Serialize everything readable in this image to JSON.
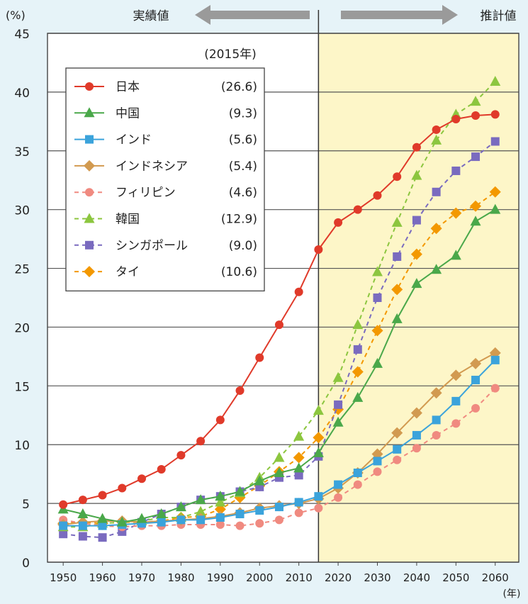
{
  "chart_data": {
    "type": "line",
    "y_unit_label": "(%)",
    "x_unit_label": "(年)",
    "region_labels": {
      "actual": "実績値",
      "projected": "推計値"
    },
    "legend_year_label": "(2015年)",
    "x": [
      1950,
      1955,
      1960,
      1965,
      1970,
      1975,
      1980,
      1985,
      1990,
      1995,
      2000,
      2005,
      2010,
      2015,
      2020,
      2025,
      2030,
      2035,
      2040,
      2045,
      2050,
      2055,
      2060
    ],
    "x_ticks": [
      1950,
      1960,
      1970,
      1980,
      1990,
      2000,
      2010,
      2020,
      2030,
      2040,
      2050,
      2060
    ],
    "ylim": [
      0,
      45
    ],
    "y_ticks": [
      0,
      5,
      10,
      15,
      20,
      25,
      30,
      35,
      40,
      45
    ],
    "projection_start": 2015,
    "grid": "horizontal",
    "legend_position": "top-left",
    "series": [
      {
        "name": "日本",
        "value_2015": "(26.6)",
        "color": "#e03a2a",
        "marker": "circle",
        "dashed": false,
        "values": [
          4.9,
          5.3,
          5.7,
          6.3,
          7.1,
          7.9,
          9.1,
          10.3,
          12.1,
          14.6,
          17.4,
          20.2,
          23.0,
          26.6,
          28.9,
          30.0,
          31.2,
          32.8,
          35.3,
          36.8,
          37.7,
          38.0,
          38.1
        ]
      },
      {
        "name": "中国",
        "value_2015": "(9.3)",
        "color": "#4aa84a",
        "marker": "triangle",
        "dashed": false,
        "values": [
          4.5,
          4.1,
          3.7,
          3.4,
          3.7,
          4.1,
          4.7,
          5.3,
          5.6,
          6.0,
          6.9,
          7.6,
          8.0,
          9.3,
          11.9,
          14.0,
          16.9,
          20.7,
          23.7,
          24.9,
          26.1,
          29.0,
          30.0
        ]
      },
      {
        "name": "インド",
        "value_2015": "(5.6)",
        "color": "#3ba3db",
        "marker": "square",
        "dashed": false,
        "values": [
          3.1,
          3.1,
          3.1,
          3.2,
          3.3,
          3.4,
          3.6,
          3.6,
          3.8,
          4.1,
          4.4,
          4.7,
          5.1,
          5.6,
          6.6,
          7.6,
          8.6,
          9.6,
          10.8,
          12.1,
          13.7,
          15.5,
          17.2
        ]
      },
      {
        "name": "インドネシア",
        "value_2015": "(5.4)",
        "color": "#d29a50",
        "marker": "diamond",
        "dashed": false,
        "values": [
          3.2,
          3.4,
          3.5,
          3.5,
          3.4,
          3.5,
          3.6,
          3.7,
          3.9,
          4.2,
          4.6,
          4.8,
          5.0,
          5.4,
          6.3,
          7.6,
          9.2,
          11.0,
          12.7,
          14.4,
          15.9,
          16.9,
          17.8
        ]
      },
      {
        "name": "フィリピン",
        "value_2015": "(4.6)",
        "color": "#f08a80",
        "marker": "circle",
        "dashed": true,
        "values": [
          3.6,
          3.3,
          3.1,
          3.0,
          3.1,
          3.1,
          3.2,
          3.2,
          3.2,
          3.1,
          3.3,
          3.6,
          4.2,
          4.6,
          5.5,
          6.6,
          7.7,
          8.7,
          9.7,
          10.8,
          11.8,
          13.1,
          14.8
        ]
      },
      {
        "name": "韓国",
        "value_2015": "(12.9)",
        "color": "#8cc63f",
        "marker": "triangle",
        "dashed": true,
        "values": [
          3.0,
          3.0,
          3.3,
          3.4,
          3.5,
          3.8,
          3.8,
          4.3,
          5.1,
          5.9,
          7.2,
          8.9,
          10.7,
          12.9,
          15.7,
          20.2,
          24.7,
          28.9,
          32.9,
          35.9,
          38.1,
          39.2,
          40.9
        ]
      },
      {
        "name": "シンガポール",
        "value_2015": "(9.0)",
        "color": "#7a6bbf",
        "marker": "square",
        "dashed": true,
        "values": [
          2.4,
          2.2,
          2.1,
          2.6,
          3.4,
          4.1,
          4.7,
          5.3,
          5.6,
          6.0,
          6.4,
          7.2,
          7.4,
          9.0,
          13.4,
          18.1,
          22.5,
          26.0,
          29.1,
          31.5,
          33.3,
          34.5,
          35.8
        ]
      },
      {
        "name": "タイ",
        "value_2015": "(10.6)",
        "color": "#f39800",
        "marker": "diamond",
        "dashed": true,
        "values": [
          3.3,
          3.4,
          3.3,
          3.4,
          3.4,
          3.5,
          3.8,
          3.9,
          4.5,
          5.5,
          6.5,
          7.7,
          8.9,
          10.6,
          13.0,
          16.2,
          19.7,
          23.2,
          26.2,
          28.4,
          29.7,
          30.3,
          31.5
        ]
      }
    ]
  }
}
